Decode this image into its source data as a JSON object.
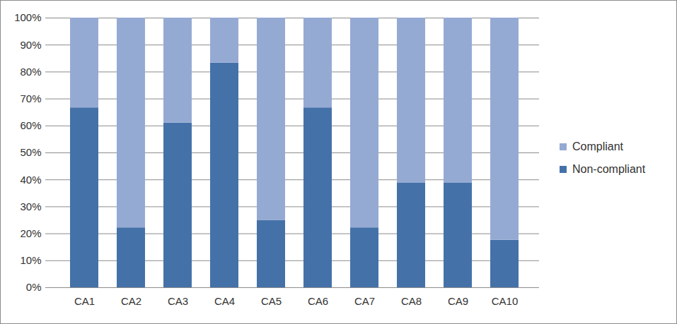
{
  "chart_data": {
    "type": "bar",
    "stacked": true,
    "grid": true,
    "legend": "right",
    "categories": [
      "CA1",
      "CA2",
      "CA3",
      "CA4",
      "CA5",
      "CA6",
      "CA7",
      "CA8",
      "CA9",
      "CA10"
    ],
    "series": [
      {
        "name": "Non-compliant",
        "color": "#4571a9",
        "values": [
          66.7,
          22.2,
          61.1,
          83.3,
          25,
          66.7,
          22.2,
          38.9,
          38.9,
          17.6
        ]
      },
      {
        "name": "Compliant",
        "color": "#95aad3",
        "values": [
          33.3,
          77.8,
          38.9,
          16.7,
          75,
          33.3,
          77.8,
          61.1,
          61.1,
          82.4
        ]
      }
    ],
    "ylim": [
      0,
      100
    ],
    "yticks": [
      {
        "value": 0,
        "label": "0%"
      },
      {
        "value": 10,
        "label": "10%"
      },
      {
        "value": 20,
        "label": "20%"
      },
      {
        "value": 30,
        "label": "30%"
      },
      {
        "value": 40,
        "label": "40%"
      },
      {
        "value": 50,
        "label": "50%"
      },
      {
        "value": 60,
        "label": "60%"
      },
      {
        "value": 70,
        "label": "70%"
      },
      {
        "value": 80,
        "label": "80%"
      },
      {
        "value": 90,
        "label": "90%"
      },
      {
        "value": 100,
        "label": "100%"
      }
    ]
  }
}
